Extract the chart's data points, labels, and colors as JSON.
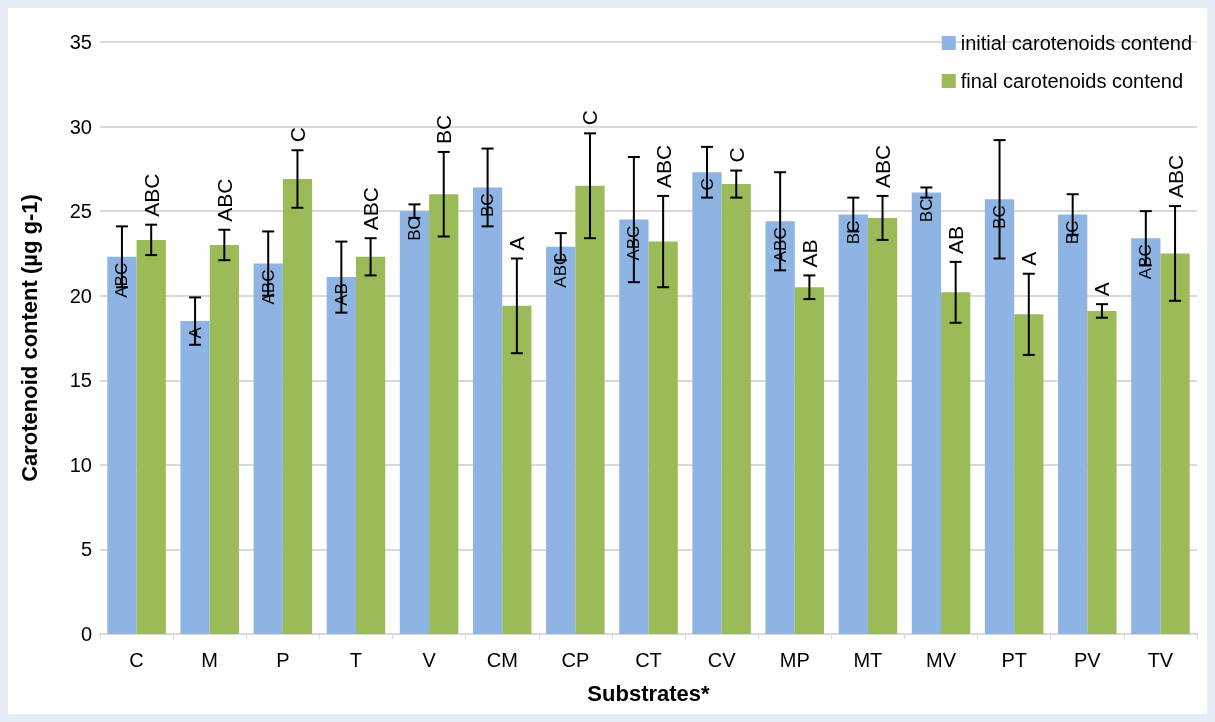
{
  "chart_data": {
    "type": "bar",
    "xlabel": "Substrates*",
    "ylabel": "Carotenoid content (µg g-1)",
    "categories": [
      "C",
      "M",
      "P",
      "T",
      "V",
      "CM",
      "CP",
      "CT",
      "CV",
      "MP",
      "MT",
      "MV",
      "PT",
      "PV",
      "TV"
    ],
    "series": [
      {
        "name": "initial carotenoids contend",
        "color": "#8eb4e3",
        "values": [
          22.3,
          18.5,
          21.9,
          21.1,
          25.0,
          26.4,
          22.9,
          24.5,
          27.3,
          24.4,
          24.8,
          26.1,
          25.7,
          24.8,
          23.4
        ],
        "errors": [
          1.8,
          1.4,
          1.9,
          2.1,
          0.4,
          2.3,
          0.8,
          3.7,
          1.5,
          2.9,
          1.0,
          0.3,
          3.5,
          1.2,
          1.6
        ],
        "value_labels": [
          "ABC",
          "A",
          "ABC",
          "AB",
          "BC",
          "BC",
          "ABC",
          "ABC",
          "C",
          "ABC",
          "BC",
          "BC",
          "BC",
          "BC",
          "ABC"
        ]
      },
      {
        "name": "final carotenoids contend",
        "color": "#9bbb59",
        "values": [
          23.3,
          23.0,
          26.9,
          22.3,
          26.0,
          19.4,
          26.5,
          23.2,
          26.6,
          20.5,
          24.6,
          20.2,
          18.9,
          19.1,
          22.5
        ],
        "errors": [
          0.9,
          0.9,
          1.7,
          1.1,
          2.5,
          2.8,
          3.1,
          2.7,
          0.8,
          0.7,
          1.3,
          1.8,
          2.4,
          0.4,
          2.8
        ],
        "value_labels": [
          "ABC",
          "ABC",
          "C",
          "ABC",
          "BC",
          "A",
          "C",
          "ABC",
          "C",
          "AB",
          "ABC",
          "AB",
          "A",
          "A",
          "ABC"
        ]
      }
    ],
    "ylim": [
      0,
      35
    ],
    "yticks": [
      0,
      5,
      10,
      15,
      20,
      25,
      30,
      35
    ],
    "grid": "y",
    "legend": "top right"
  }
}
